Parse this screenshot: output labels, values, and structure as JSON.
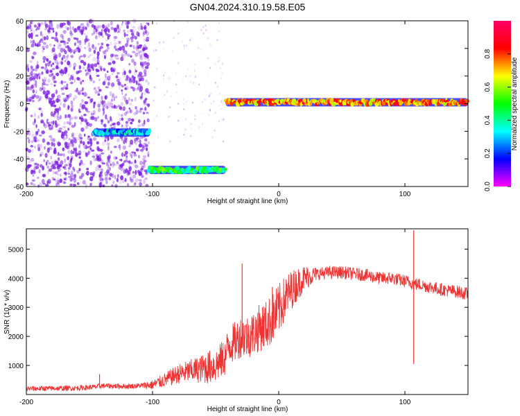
{
  "title": "GN04.2024.310.19.58.E05",
  "chart_data": [
    {
      "type": "heatmap",
      "xlabel": "Height of straight line (km)",
      "ylabel": "Frequency (Hz)",
      "xlim": [
        -200,
        150
      ],
      "ylim": [
        -60,
        60
      ],
      "xticks": [
        -200,
        -100,
        0,
        100
      ],
      "yticks": [
        -60,
        -40,
        -20,
        0,
        20,
        40,
        60
      ],
      "colorbar": {
        "label": "Normalized spectral amplitude",
        "range": [
          0,
          1
        ],
        "ticks": [
          0.0,
          0.2,
          0.4,
          0.6,
          0.8
        ],
        "colors": [
          "#ff00ff",
          "#0000ff",
          "#00ffff",
          "#00ff00",
          "#ffff00",
          "#ff0000",
          "#ff0066"
        ]
      },
      "features": [
        {
          "x_range": [
            -200,
            -103
          ],
          "frequency": "scattered noise",
          "amplitude": 0.05
        },
        {
          "x_range": [
            -147,
            -102
          ],
          "frequency": -21,
          "amplitude": 0.3
        },
        {
          "x_range": [
            -103,
            -42
          ],
          "frequency": -48,
          "amplitude": 0.45
        },
        {
          "x_range": [
            -42,
            150
          ],
          "frequency": 1,
          "amplitude": 0.75
        }
      ],
      "noise_color": "#7a1fe0"
    },
    {
      "type": "line",
      "xlabel": "Height of straight line (km)",
      "ylabel": "SNR (10 * v/v)",
      "xlim": [
        -200,
        150
      ],
      "ylim": [
        0,
        5700
      ],
      "xticks": [
        -200,
        -100,
        0,
        100
      ],
      "yticks": [
        1000,
        2000,
        3000,
        4000,
        5000
      ],
      "line_color": "#ee3333",
      "series": [
        {
          "x": [
            -200,
            -180,
            -160,
            -145,
            -140,
            -120,
            -100,
            -90,
            -80,
            -70,
            -60,
            -50,
            -42,
            -40,
            -35,
            -30,
            -25,
            -20,
            -15,
            -10,
            -5,
            0,
            5,
            10,
            15,
            20,
            30,
            40,
            50,
            60,
            70,
            80,
            90,
            100,
            105,
            107,
            110,
            120,
            130,
            140,
            150
          ],
          "y": [
            200,
            210,
            220,
            260,
            300,
            280,
            330,
            500,
            700,
            800,
            900,
            1000,
            1300,
            1700,
            1800,
            2000,
            2000,
            2100,
            2300,
            2400,
            2600,
            2900,
            3300,
            3600,
            3800,
            4000,
            4150,
            4200,
            4200,
            4150,
            4100,
            4000,
            4000,
            3900,
            3850,
            3800,
            3800,
            3700,
            3600,
            3550,
            3450
          ]
        }
      ],
      "spikes": [
        {
          "x": -142,
          "y": 700
        },
        {
          "x": -29,
          "y": 4500
        },
        {
          "x": -5,
          "y": 3700
        },
        {
          "x": 107,
          "y": 5650
        },
        {
          "x": 107,
          "y": 1050
        }
      ]
    }
  ]
}
